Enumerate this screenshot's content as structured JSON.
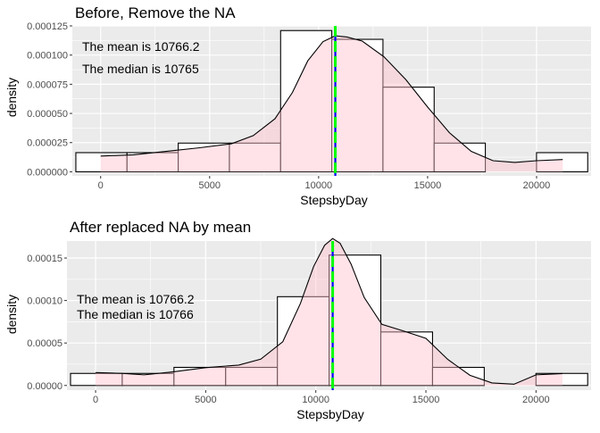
{
  "chart_data": [
    {
      "type": "bar",
      "title": "Before, Remove the NA",
      "xlabel": "StepsbyDay",
      "ylabel": "density",
      "xlim": [
        -1300,
        22500
      ],
      "ylim": [
        -3.5e-06,
        0.000125
      ],
      "x_ticks": [
        0,
        5000,
        10000,
        15000,
        20000
      ],
      "x_tick_labels": [
        "0",
        "5000",
        "10000",
        "15000",
        "20000"
      ],
      "y_ticks": [
        0,
        2.5e-05,
        5e-05,
        7.5e-05,
        0.0001,
        0.000125
      ],
      "y_tick_labels": [
        "0.000000",
        "0.000025",
        "0.000050",
        "0.000075",
        "0.000100",
        "0.000125"
      ],
      "bin_edges": [
        -1138,
        1210,
        3559,
        5907,
        8256,
        10604,
        12952,
        15301,
        17649,
        19998,
        22346
      ],
      "values": [
        1.64e-05,
        1.64e-05,
        2.46e-05,
        2.46e-05,
        0.000121,
        0.0001135,
        7.25e-05,
        2.46e-05,
        0.0,
        1.64e-05
      ],
      "density_curve": {
        "x": [
          0,
          1500,
          3000,
          4500,
          6000,
          7000,
          8000,
          8800,
          9500,
          10200,
          10766,
          11300,
          12000,
          13000,
          14000,
          15000,
          16000,
          17000,
          18000,
          19000,
          20000,
          21200
        ],
        "y": [
          1.35e-05,
          1.45e-05,
          1.75e-05,
          2.05e-05,
          2.4e-05,
          3.1e-05,
          4.55e-05,
          6.8e-05,
          9.5e-05,
          0.0001115,
          0.0001165,
          0.0001155,
          0.000112,
          9.85e-05,
          7.9e-05,
          5.55e-05,
          3.35e-05,
          1.75e-05,
          9.5e-06,
          8e-06,
          9.5e-06,
          1.05e-05
        ]
      },
      "mean": 10766.2,
      "median": 10765,
      "annotations": [
        "The mean is 10766.2",
        "The median is 10765"
      ],
      "colors": {
        "panel": "#EBEBEB",
        "grid": "#FFFFFF",
        "fill": "#FFC0CB",
        "mean_line": "#0000FF",
        "median_line": "#00FF00"
      }
    },
    {
      "type": "bar",
      "title": "After replaced NA by  mean",
      "xlabel": "StepsbyDay",
      "ylabel": "density",
      "xlim": [
        -1300,
        22500
      ],
      "ylim": [
        -5.5e-06,
        0.00017
      ],
      "x_ticks": [
        0,
        5000,
        10000,
        15000,
        20000
      ],
      "x_tick_labels": [
        "0",
        "5000",
        "10000",
        "15000",
        "20000"
      ],
      "y_ticks": [
        0,
        5e-05,
        0.0001,
        0.00015
      ],
      "y_tick_labels": [
        "0.00000",
        "0.00005",
        "0.00010",
        "0.00015"
      ],
      "bin_edges": [
        -1138,
        1210,
        3559,
        5907,
        8256,
        10604,
        12952,
        15301,
        17649,
        19998,
        22346
      ],
      "values": [
        1.42e-05,
        1.42e-05,
        2.13e-05,
        2.13e-05,
        0.0001045,
        0.0001535,
        6.3e-05,
        2.13e-05,
        0.0,
        1.42e-05
      ],
      "density_curve": {
        "x": [
          0,
          1200,
          2200,
          3500,
          5000,
          6500,
          7500,
          8500,
          9300,
          9900,
          10400,
          10766,
          11100,
          11600,
          12200,
          13000,
          14000,
          15000,
          16000,
          17000,
          18000,
          19000,
          20000,
          21200
        ],
        "y": [
          1.52e-05,
          1.42e-05,
          1.25e-05,
          1.6e-05,
          2.1e-05,
          2.4e-05,
          3.1e-05,
          5.15e-05,
          9.65e-05,
          0.00014,
          0.000165,
          0.000173,
          0.0001675,
          0.000143,
          0.0001035,
          7.2e-05,
          6.4e-05,
          5.55e-05,
          3.05e-05,
          1.2e-05,
          3e-06,
          1.5e-06,
          1.25e-05,
          1.4e-05
        ]
      },
      "mean": 10766.2,
      "median": 10766,
      "annotations": [
        "The mean is 10766.2",
        "The median is 10766"
      ],
      "colors": {
        "panel": "#EBEBEB",
        "grid": "#FFFFFF",
        "fill": "#FFC0CB",
        "mean_line": "#0000FF",
        "median_line": "#00FF00"
      }
    }
  ]
}
